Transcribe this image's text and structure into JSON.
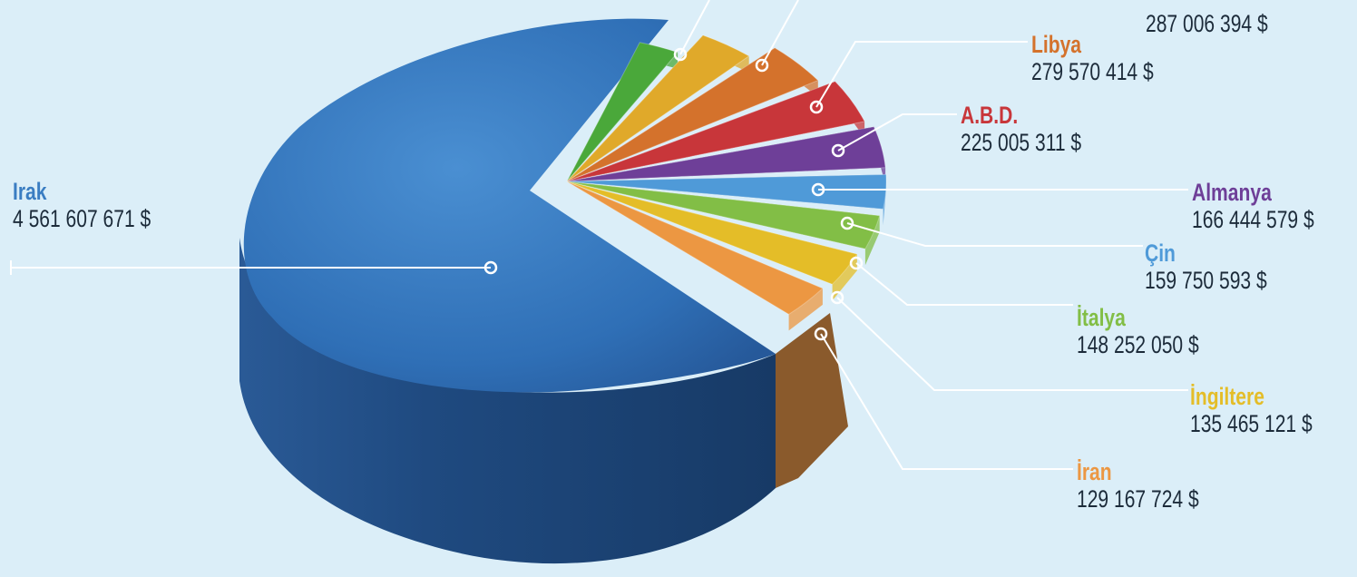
{
  "chart_data": {
    "type": "pie",
    "unit": "$",
    "categories": [
      "Irak",
      "",
      "",
      "",
      "Libya",
      "A.B.D.",
      "Almanya",
      "Çin",
      "İtalya",
      "İngiltere",
      "İran"
    ],
    "value_labels": [
      "4 561 607 671 $",
      "",
      "",
      "287 006 394 $",
      "279 570 414 $",
      "225 005 311 $",
      "166 444 579 $",
      "159 750 593 $",
      "148 252 050 $",
      "135 465 121 $",
      "129 167 724 $"
    ],
    "values": [
      4561607671,
      null,
      null,
      287006394,
      279570414,
      225005311,
      166444579,
      159750593,
      148252050,
      135465121,
      129167724
    ],
    "colors": {
      "Irak": "#3b7ec4",
      "Libya": "#d4722c",
      "A.B.D.": "#c8363a",
      "Almanya": "#6e3f98",
      "Çin": "#4f9ad8",
      "İtalya": "#82be46",
      "İngiltere": "#e4bd28",
      "İran": "#ec9742",
      "green_slice": "#4aa83a",
      "gold_slice": "#e0a92a"
    },
    "legend": "none"
  }
}
